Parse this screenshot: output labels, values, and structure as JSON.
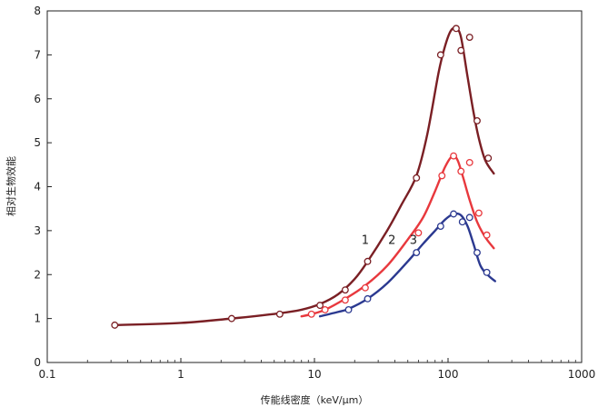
{
  "chart_data": {
    "type": "line",
    "title": "",
    "xlabel": "传能线密度（keV/μm）",
    "ylabel": "相对生物效能",
    "xscale": "log",
    "xlim": [
      0.1,
      1000
    ],
    "ylim": [
      0,
      8
    ],
    "x_ticks": [
      "0.1",
      "1",
      "10",
      "100",
      "1000"
    ],
    "y_ticks": [
      "0",
      "1",
      "2",
      "3",
      "4",
      "5",
      "6",
      "7",
      "8"
    ],
    "grid": false,
    "series": [
      {
        "name": "1",
        "color": "#7a1f24",
        "points": [
          [
            0.32,
            0.85
          ],
          [
            2.4,
            1.0
          ],
          [
            5.5,
            1.1
          ],
          [
            11,
            1.3
          ],
          [
            17,
            1.65
          ],
          [
            25,
            2.3
          ],
          [
            58,
            4.2
          ],
          [
            88,
            7.0
          ],
          [
            115,
            7.6
          ],
          [
            125,
            7.1
          ],
          [
            145,
            7.4
          ],
          [
            165,
            5.5
          ],
          [
            200,
            4.65
          ]
        ],
        "curve": [
          [
            0.32,
            0.85
          ],
          [
            1,
            0.9
          ],
          [
            2.4,
            1.0
          ],
          [
            5.5,
            1.12
          ],
          [
            8,
            1.2
          ],
          [
            11,
            1.33
          ],
          [
            15,
            1.55
          ],
          [
            20,
            1.9
          ],
          [
            25,
            2.3
          ],
          [
            35,
            3.0
          ],
          [
            45,
            3.6
          ],
          [
            58,
            4.25
          ],
          [
            70,
            5.2
          ],
          [
            85,
            6.6
          ],
          [
            95,
            7.2
          ],
          [
            105,
            7.55
          ],
          [
            115,
            7.6
          ],
          [
            125,
            7.4
          ],
          [
            140,
            6.5
          ],
          [
            155,
            5.7
          ],
          [
            170,
            5.1
          ],
          [
            190,
            4.6
          ],
          [
            220,
            4.3
          ]
        ]
      },
      {
        "name": "2",
        "color": "#e8383d",
        "points": [
          [
            9.5,
            1.1
          ],
          [
            12,
            1.2
          ],
          [
            17,
            1.42
          ],
          [
            24,
            1.7
          ],
          [
            60,
            2.95
          ],
          [
            90,
            4.25
          ],
          [
            110,
            4.7
          ],
          [
            125,
            4.35
          ],
          [
            145,
            4.55
          ],
          [
            170,
            3.4
          ],
          [
            195,
            2.9
          ]
        ],
        "curve": [
          [
            8,
            1.05
          ],
          [
            9.5,
            1.1
          ],
          [
            12,
            1.2
          ],
          [
            17,
            1.45
          ],
          [
            24,
            1.75
          ],
          [
            35,
            2.2
          ],
          [
            50,
            2.8
          ],
          [
            65,
            3.3
          ],
          [
            80,
            3.9
          ],
          [
            95,
            4.45
          ],
          [
            108,
            4.7
          ],
          [
            118,
            4.6
          ],
          [
            130,
            4.2
          ],
          [
            145,
            3.7
          ],
          [
            165,
            3.2
          ],
          [
            190,
            2.85
          ],
          [
            220,
            2.6
          ]
        ]
      },
      {
        "name": "3",
        "color": "#2b3990",
        "points": [
          [
            18,
            1.2
          ],
          [
            25,
            1.45
          ],
          [
            58,
            2.5
          ],
          [
            88,
            3.1
          ],
          [
            110,
            3.38
          ],
          [
            128,
            3.2
          ],
          [
            145,
            3.3
          ],
          [
            165,
            2.5
          ],
          [
            195,
            2.05
          ]
        ],
        "curve": [
          [
            11,
            1.05
          ],
          [
            15,
            1.15
          ],
          [
            18,
            1.22
          ],
          [
            25,
            1.45
          ],
          [
            35,
            1.8
          ],
          [
            50,
            2.3
          ],
          [
            65,
            2.7
          ],
          [
            80,
            3.0
          ],
          [
            95,
            3.25
          ],
          [
            110,
            3.38
          ],
          [
            125,
            3.35
          ],
          [
            140,
            3.1
          ],
          [
            155,
            2.7
          ],
          [
            175,
            2.2
          ],
          [
            200,
            1.98
          ],
          [
            225,
            1.85
          ]
        ]
      }
    ],
    "annotations": [
      {
        "text": "1",
        "x": 24,
        "y": 2.7
      },
      {
        "text": "2",
        "x": 38,
        "y": 2.7
      },
      {
        "text": "3",
        "x": 55,
        "y": 2.7
      }
    ]
  }
}
